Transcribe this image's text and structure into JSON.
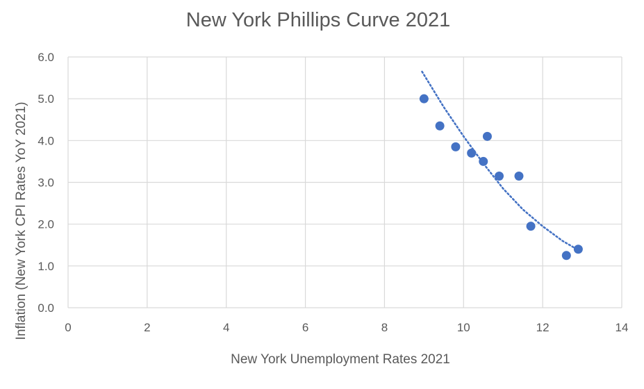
{
  "chart_data": {
    "type": "scatter",
    "title": "New York Phillips Curve 2021",
    "xlabel": "New York Unemployment Rates 2021",
    "ylabel": "Inflation (New York CPI Rates YoY 2021)",
    "xlim": [
      0,
      14
    ],
    "ylim": [
      0,
      6
    ],
    "x_ticks": [
      "0",
      "2",
      "4",
      "6",
      "8",
      "10",
      "12",
      "14"
    ],
    "y_ticks": [
      "0.0",
      "1.0",
      "2.0",
      "3.0",
      "4.0",
      "5.0",
      "6.0"
    ],
    "x_tick_values": [
      0,
      2,
      4,
      6,
      8,
      10,
      12,
      14
    ],
    "y_tick_values": [
      0,
      1,
      2,
      3,
      4,
      5,
      6
    ],
    "grid": true,
    "legend": "none",
    "marker_color": "#4472c4",
    "points": [
      {
        "x": 9.0,
        "y": 5.0
      },
      {
        "x": 9.4,
        "y": 4.35
      },
      {
        "x": 9.8,
        "y": 3.85
      },
      {
        "x": 10.2,
        "y": 3.7
      },
      {
        "x": 10.5,
        "y": 3.5
      },
      {
        "x": 10.6,
        "y": 4.1
      },
      {
        "x": 10.9,
        "y": 3.15
      },
      {
        "x": 11.4,
        "y": 3.15
      },
      {
        "x": 11.7,
        "y": 1.95
      },
      {
        "x": 12.6,
        "y": 1.25
      },
      {
        "x": 12.9,
        "y": 1.4
      }
    ],
    "trendline": {
      "style": "dotted",
      "points": [
        {
          "x": 8.95,
          "y": 5.65
        },
        {
          "x": 9.5,
          "y": 4.8
        },
        {
          "x": 10.0,
          "y": 4.1
        },
        {
          "x": 10.5,
          "y": 3.45
        },
        {
          "x": 11.0,
          "y": 2.85
        },
        {
          "x": 11.5,
          "y": 2.35
        },
        {
          "x": 12.0,
          "y": 1.95
        },
        {
          "x": 12.5,
          "y": 1.6
        },
        {
          "x": 12.9,
          "y": 1.38
        }
      ]
    }
  }
}
